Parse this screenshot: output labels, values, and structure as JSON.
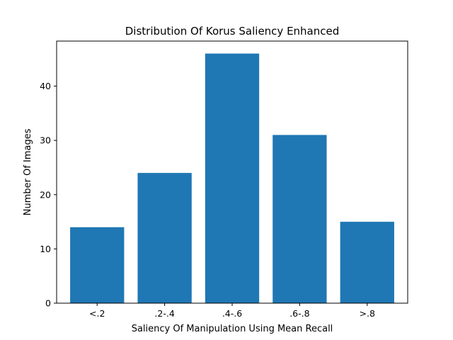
{
  "chart_data": {
    "type": "bar",
    "title": "Distribution Of Korus Saliency Enhanced",
    "xlabel": "Saliency Of Manipulation Using Mean Recall",
    "ylabel": "Number Of Images",
    "categories": [
      "<.2",
      ".2-.4",
      ".4-.6",
      ".6-.8",
      ">.8"
    ],
    "values": [
      14,
      24,
      46,
      31,
      15
    ],
    "ylim": [
      0,
      48.3
    ],
    "yticks": [
      0,
      10,
      20,
      30,
      40
    ],
    "grid": false,
    "bar_color": "#1f77b4"
  }
}
